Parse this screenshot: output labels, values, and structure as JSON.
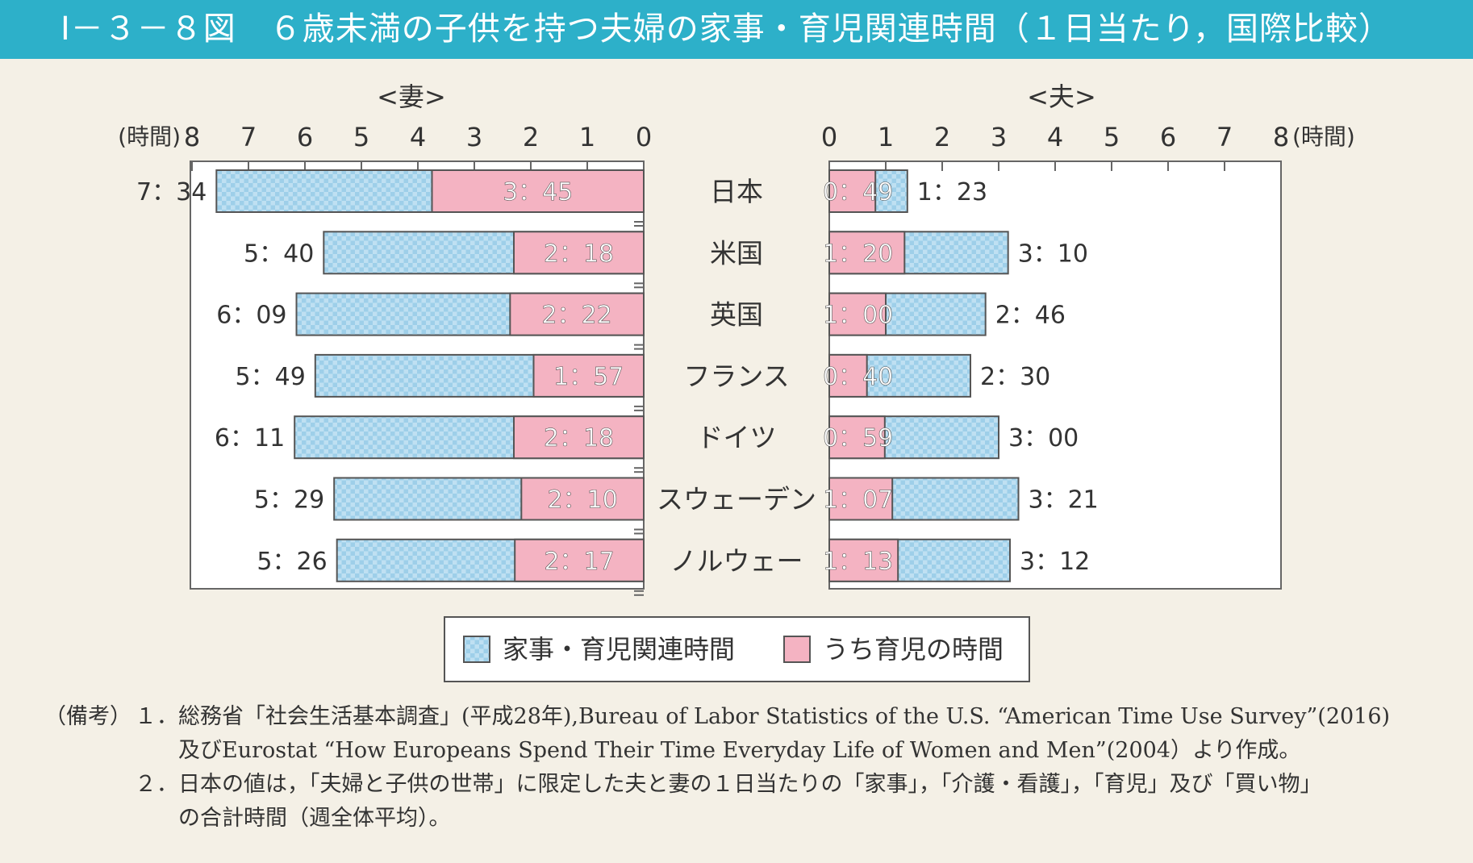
{
  "title": "Ⅰ－３－８図　６歳未満の子供を持つ夫婦の家事・育児関連時間（１日当たり，国際比較）",
  "chart_data": {
    "type": "bar",
    "orientation": "horizontal",
    "unit": "(時間)",
    "xlim": [
      0,
      8
    ],
    "ticks": [
      "0",
      "1",
      "2",
      "3",
      "4",
      "5",
      "6",
      "7",
      "8"
    ],
    "categories": [
      "日本",
      "米国",
      "英国",
      "フランス",
      "ドイツ",
      "スウェーデン",
      "ノルウェー"
    ],
    "panels": [
      {
        "name": "<妻>",
        "direction": "left",
        "series": [
          {
            "name": "家事・育児関連時間",
            "values": [
              7.567,
              5.667,
              6.15,
              5.817,
              6.183,
              5.483,
              5.433
            ],
            "labels": [
              "7：34",
              "5：40",
              "6：09",
              "5：49",
              "6：11",
              "5：29",
              "5：26"
            ]
          },
          {
            "name": "うち育児の時間",
            "values": [
              3.75,
              2.3,
              2.367,
              1.95,
              2.3,
              2.167,
              2.283
            ],
            "labels": [
              "3：45",
              "2：18",
              "2：22",
              "1：57",
              "2：18",
              "2：10",
              "2：17"
            ]
          }
        ]
      },
      {
        "name": "<夫>",
        "direction": "right",
        "series": [
          {
            "name": "家事・育児関連時間",
            "values": [
              1.383,
              3.167,
              2.767,
              2.5,
              3.0,
              3.35,
              3.2
            ],
            "labels": [
              "1：23",
              "3：10",
              "2：46",
              "2：30",
              "3：00",
              "3：21",
              "3：12"
            ]
          },
          {
            "name": "うち育児の時間",
            "values": [
              0.817,
              1.333,
              1.0,
              0.667,
              0.983,
              1.117,
              1.217
            ],
            "labels": [
              "0：49",
              "1：20",
              "1：00",
              "0：40",
              "0：59",
              "1：07",
              "1：13"
            ]
          }
        ]
      }
    ],
    "legend": [
      "家事・育児関連時間",
      "うち育児の時間"
    ],
    "colors": {
      "total": "#bfe0f2",
      "total_check": "#9ecfe9",
      "childcare": "#f4b3c2"
    }
  },
  "notes": {
    "head": "（備考）",
    "items": [
      {
        "num": "１．",
        "lines": [
          "総務省「社会生活基本調査」(平成28年),Bureau of Labor Statistics of the U.S. “American Time Use Survey”(2016)",
          "及びEurostat “How Europeans Spend Their Time Everyday Life of Women and Men”(2004）より作成。"
        ]
      },
      {
        "num": "２．",
        "lines": [
          "日本の値は，「夫婦と子供の世帯」に限定した夫と妻の１日当たりの「家事」，「介護・看護」，「育児」及び「買い物」",
          "の合計時間（週全体平均）。"
        ]
      }
    ]
  }
}
